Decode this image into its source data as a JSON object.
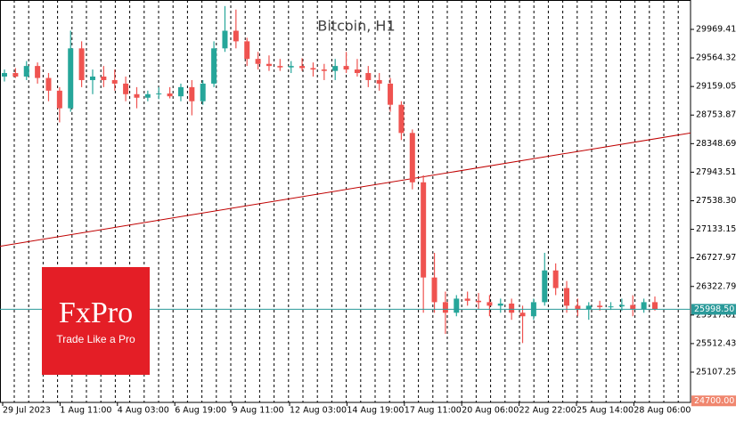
{
  "chart_data": {
    "type": "candlestick",
    "title": "Bitcoin, H1",
    "logo": {
      "name": "FxPro",
      "slogan": "Trade Like a Pro"
    },
    "up_color": "#26a69a",
    "down_color": "#ef5350",
    "open": [
      29300,
      29350,
      29300,
      29450,
      29280,
      29100,
      28850,
      29700,
      29250,
      29300,
      29250,
      29200,
      29050,
      29000,
      29050,
      29060,
      29020,
      29150,
      28950,
      29200,
      29700,
      29950,
      29800,
      29550,
      29480,
      29450,
      29430,
      29450,
      29420,
      29400,
      29380,
      29450,
      29400,
      29350,
      29250,
      29200,
      28900,
      28500,
      27800,
      26450,
      26100,
      25950,
      26150,
      26120,
      26100,
      26050,
      26080,
      25950,
      25900,
      26100,
      26550,
      26300,
      26050,
      26000,
      26050,
      26030,
      26040,
      26060,
      26000,
      26100
    ],
    "high": [
      29400,
      29420,
      29520,
      29500,
      29350,
      29150,
      29950,
      29800,
      29400,
      29450,
      29400,
      29300,
      29150,
      29100,
      29150,
      29150,
      29200,
      29250,
      29250,
      29800,
      30300,
      30250,
      29850,
      29650,
      29600,
      29550,
      29520,
      29560,
      29500,
      29480,
      29550,
      29650,
      29550,
      29450,
      29350,
      29280,
      28950,
      28550,
      27900,
      26800,
      26250,
      26200,
      26250,
      26230,
      26200,
      26150,
      26150,
      26050,
      26150,
      26800,
      26650,
      26400,
      26150,
      26100,
      26120,
      26100,
      26150,
      26200,
      26150,
      26180
    ],
    "low": [
      29230,
      29280,
      29250,
      29200,
      28950,
      28650,
      28800,
      29150,
      29050,
      29150,
      29100,
      28950,
      28850,
      28950,
      28980,
      28990,
      28950,
      28750,
      28900,
      29150,
      29650,
      29700,
      29450,
      29400,
      29380,
      29380,
      29350,
      29380,
      29300,
      29250,
      29250,
      29350,
      29300,
      29150,
      29100,
      28800,
      28400,
      27700,
      25950,
      25950,
      25650,
      25900,
      26050,
      26000,
      25900,
      25950,
      25850,
      25520,
      25850,
      26050,
      26200,
      25950,
      25900,
      25850,
      25980,
      25990,
      25980,
      25900,
      25950,
      25980
    ],
    "close": [
      29350,
      29300,
      29450,
      29280,
      29100,
      28850,
      29700,
      29250,
      29300,
      29250,
      29200,
      29050,
      29000,
      29050,
      29060,
      29020,
      29150,
      28950,
      29200,
      29700,
      29950,
      29800,
      29550,
      29480,
      29450,
      29430,
      29450,
      29420,
      29400,
      29380,
      29450,
      29400,
      29350,
      29250,
      29200,
      28900,
      28500,
      27800,
      26450,
      26100,
      25950,
      26150,
      26120,
      26100,
      26050,
      26080,
      25950,
      25900,
      26100,
      26550,
      26300,
      26050,
      26000,
      26050,
      26030,
      26040,
      26060,
      26000,
      26100,
      25998.5
    ],
    "ylim": [
      24678,
      30386
    ],
    "yticks": [
      29969.41,
      29564.32,
      29159.05,
      28753.87,
      28348.69,
      27943.51,
      {
        "value": 27538.3,
        "label": "27538.30"
      },
      27133.15,
      26727.97,
      26322.79,
      25917.61,
      25512.43,
      25107.25
    ],
    "x_labels": [
      "29 Jul 2023",
      "1 Aug 11:00",
      "4 Aug 03:00",
      "6 Aug 19:00",
      "9 Aug 11:00",
      "12 Aug 03:00",
      "14 Aug 19:00",
      "17 Aug 11:00",
      "20 Aug 06:00",
      "22 Aug 22:00",
      "25 Aug 14:00",
      "28 Aug 06:00"
    ],
    "trendline": {
      "start": 26893,
      "end": 28500,
      "color": "#c00000"
    },
    "current_price": {
      "value": 25998.5,
      "label": "25998.50",
      "color": "#2a9a9a"
    },
    "low_label": {
      "value": 24700,
      "label": "24700.00",
      "color": "#f0866e"
    }
  }
}
